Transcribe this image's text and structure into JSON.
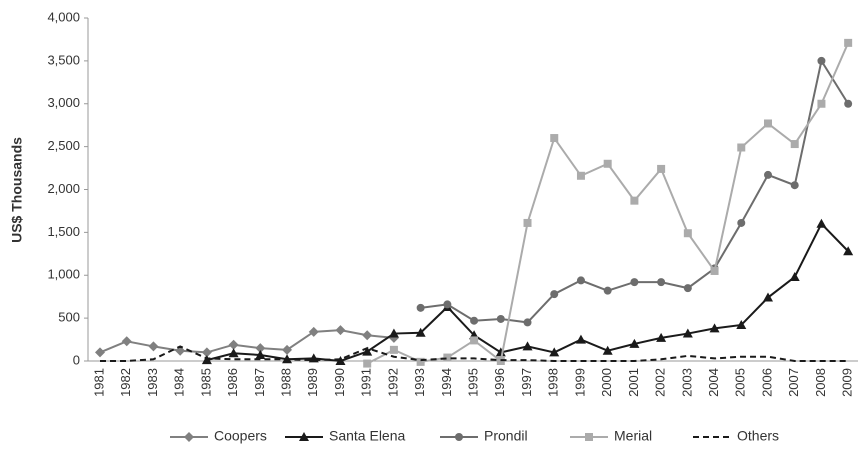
{
  "chart_data": {
    "type": "line",
    "y_label": "US$ Thousands",
    "categories": [
      "1981",
      "1982",
      "1983",
      "1984",
      "1985",
      "1986",
      "1987",
      "1988",
      "1989",
      "1990",
      "1991",
      "1992",
      "1993",
      "1994",
      "1995",
      "1996",
      "1997",
      "1998",
      "1999",
      "2000",
      "2001",
      "2002",
      "2003",
      "2004",
      "2005",
      "2006",
      "2007",
      "2008",
      "2009"
    ],
    "series": [
      {
        "name": "Coopers",
        "color": "#808080",
        "marker": "diamond",
        "values": [
          100,
          230,
          170,
          120,
          100,
          190,
          150,
          130,
          340,
          360,
          300,
          270,
          null,
          null,
          null,
          null,
          null,
          null,
          null,
          null,
          null,
          null,
          null,
          null,
          null,
          null,
          null,
          null,
          null
        ]
      },
      {
        "name": "Santa Elena",
        "color": "#1a1a1a",
        "marker": "triangle",
        "values": [
          null,
          null,
          null,
          null,
          10,
          90,
          70,
          20,
          30,
          0,
          110,
          320,
          330,
          630,
          300,
          100,
          170,
          100,
          250,
          120,
          200,
          270,
          320,
          380,
          420,
          740,
          980,
          1600,
          1280
        ]
      },
      {
        "name": "Prondil",
        "color": "#6d6d6d",
        "marker": "circle",
        "values": [
          null,
          null,
          null,
          null,
          null,
          null,
          null,
          null,
          null,
          null,
          null,
          null,
          620,
          660,
          470,
          490,
          450,
          780,
          940,
          820,
          920,
          920,
          850,
          1080,
          1610,
          2170,
          2050,
          3500,
          3000
        ]
      },
      {
        "name": "Merial",
        "color": "#ababab",
        "marker": "square",
        "values": [
          null,
          null,
          null,
          null,
          null,
          null,
          null,
          null,
          null,
          null,
          -30,
          130,
          -10,
          40,
          240,
          0,
          1610,
          2600,
          2160,
          2300,
          1870,
          2240,
          1490,
          1050,
          2490,
          2770,
          2530,
          3000,
          3710
        ]
      },
      {
        "name": "Others",
        "color": "#1a1a1a",
        "marker": "none",
        "dashed": true,
        "values": [
          0,
          0,
          20,
          170,
          30,
          20,
          20,
          20,
          10,
          20,
          150,
          50,
          10,
          30,
          30,
          10,
          10,
          0,
          0,
          0,
          0,
          20,
          60,
          30,
          50,
          50,
          0,
          0,
          0
        ]
      }
    ],
    "ylim": [
      0,
      4000
    ],
    "yticks": [
      0,
      500,
      {
        "value": 1000,
        "label": "1,000"
      },
      {
        "value": 1500,
        "label": "1,500"
      },
      {
        "value": 2000,
        "label": "2,000"
      },
      {
        "value": 2500,
        "label": "2,500"
      },
      {
        "value": 3000,
        "label": "3,000"
      },
      {
        "value": 3500,
        "label": "3,500"
      },
      {
        "value": 4000,
        "label": "4,000"
      }
    ],
    "legend": "bottom",
    "grid": false
  }
}
